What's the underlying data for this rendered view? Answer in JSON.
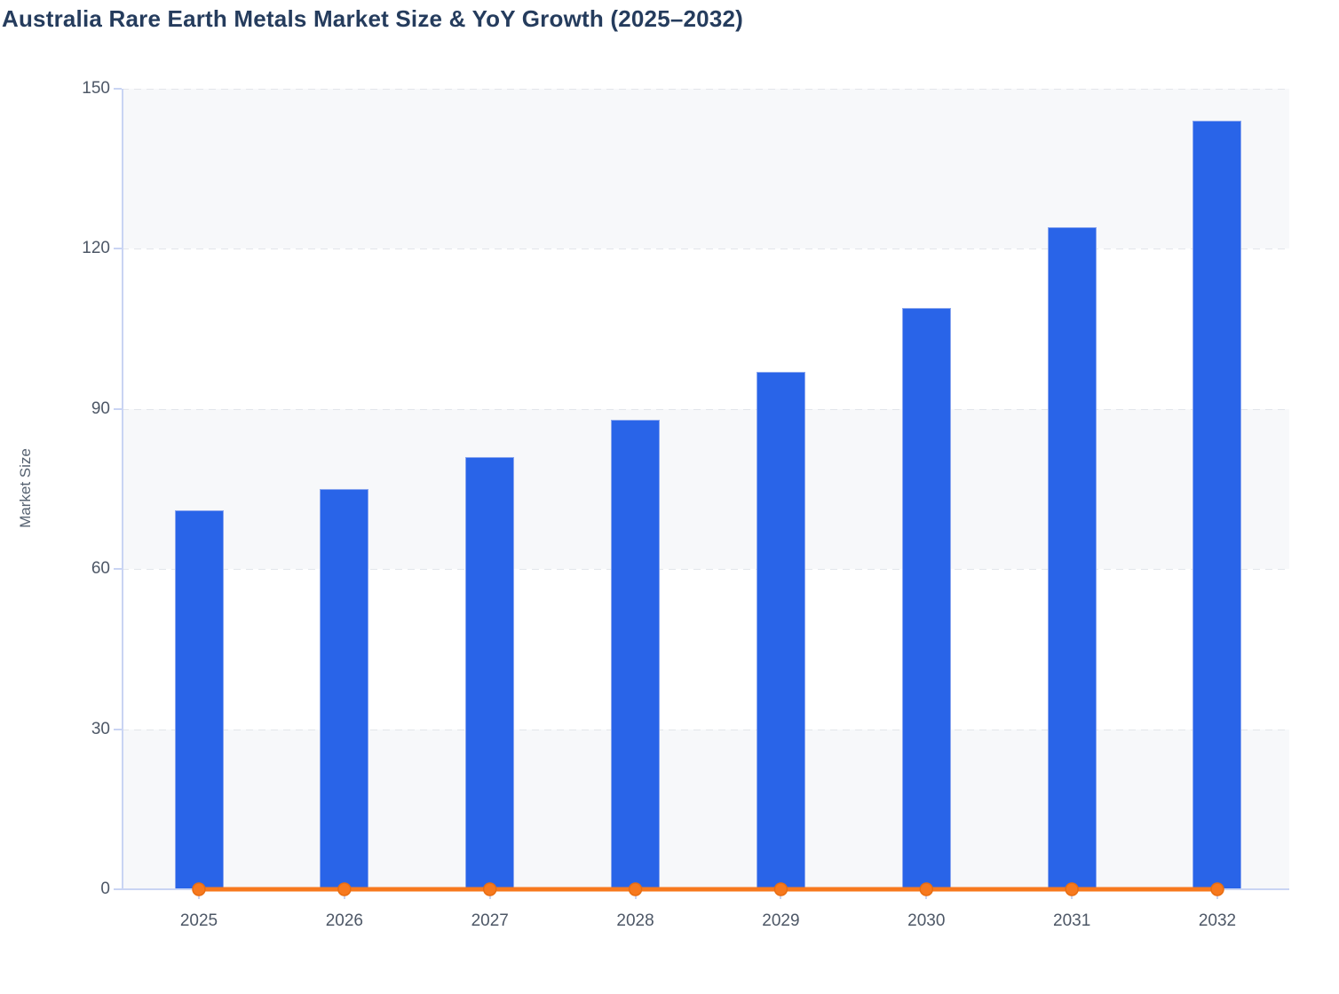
{
  "chart_data": {
    "type": "combo",
    "title": "Australia Rare Earth Metals Market Size & YoY Growth (2025–2032)",
    "xlabel": "",
    "ylabel": "Market Size",
    "categories": [
      "2025",
      "2026",
      "2027",
      "2028",
      "2029",
      "2030",
      "2031",
      "2032"
    ],
    "series": [
      {
        "name": "Market Size",
        "type": "bar",
        "values": [
          71,
          75,
          81,
          88,
          97,
          109,
          124,
          144
        ]
      },
      {
        "name": "YoY Growth",
        "type": "line",
        "values": [
          0,
          0,
          0,
          0,
          0,
          0,
          0,
          0
        ]
      }
    ],
    "ylim": [
      0,
      150
    ],
    "yticks": [
      0,
      30,
      60,
      90,
      120,
      150
    ],
    "grid": "horizontal-dashed",
    "legend": "none",
    "plot_background": "alternating-bands"
  },
  "theme": {
    "title_color": "#253c5d",
    "bar_color": "#2964e8",
    "bar_border_color": "#8aa6ef",
    "line_color": "#f7791e",
    "marker_fill": "#f7791e",
    "marker_stroke": "#e86d12",
    "axis_line_color": "#c9d4f3",
    "grid_color": "#e2e5ea",
    "band_color": "#f7f8fa",
    "tick_label_color": "#4d5766",
    "axis_title_color": "#556170",
    "background": "#ffffff"
  }
}
